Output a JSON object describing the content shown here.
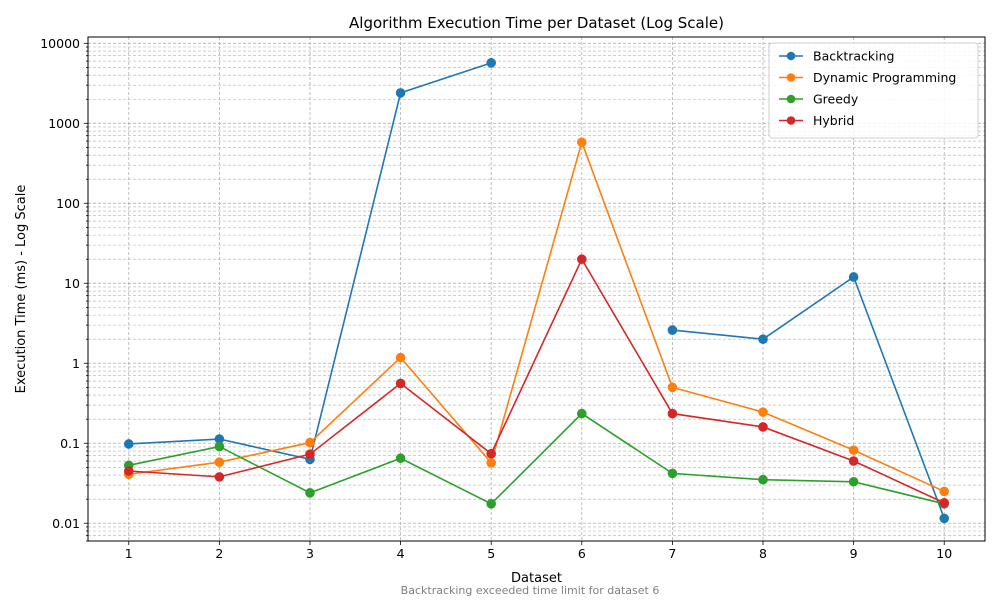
{
  "chart_data": {
    "type": "line",
    "title": "Algorithm Execution Time per Dataset (Log Scale)",
    "xlabel": "Dataset",
    "ylabel": "Execution Time (ms) - Log Scale",
    "yscale": "log",
    "ylim": [
      0.006,
      12000
    ],
    "xlim": [
      0.55,
      10.45
    ],
    "x": [
      1,
      2,
      3,
      4,
      5,
      6,
      7,
      8,
      9,
      10
    ],
    "x_tick_labels": [
      "1",
      "2",
      "3",
      "4",
      "5",
      "6",
      "7",
      "8",
      "9",
      "10"
    ],
    "y_ticks": [
      0.01,
      0.1,
      1,
      10,
      100,
      1000,
      10000
    ],
    "y_tick_labels": [
      "0.01",
      "0.1",
      "1",
      "10",
      "100",
      "1000",
      "10000"
    ],
    "grid": true,
    "legend_position": "top-right",
    "annotation": "Backtracking exceeded time limit for dataset 6",
    "series": [
      {
        "name": "Backtracking",
        "color": "#1f77b4",
        "values": [
          0.098,
          0.113,
          0.063,
          2400,
          5700,
          null,
          2.6,
          2.0,
          12,
          0.0115
        ]
      },
      {
        "name": "Dynamic Programming",
        "color": "#ff7f0e",
        "values": [
          0.041,
          0.058,
          0.102,
          1.18,
          0.057,
          580,
          0.5,
          0.245,
          0.082,
          0.025
        ]
      },
      {
        "name": "Greedy",
        "color": "#2ca02c",
        "values": [
          0.053,
          0.091,
          0.024,
          0.065,
          0.0175,
          0.235,
          0.042,
          0.035,
          0.033,
          0.0175
        ]
      },
      {
        "name": "Hybrid",
        "color": "#d62728",
        "values": [
          0.045,
          0.038,
          0.073,
          0.56,
          0.074,
          20,
          0.235,
          0.16,
          0.06,
          0.018
        ]
      }
    ]
  }
}
